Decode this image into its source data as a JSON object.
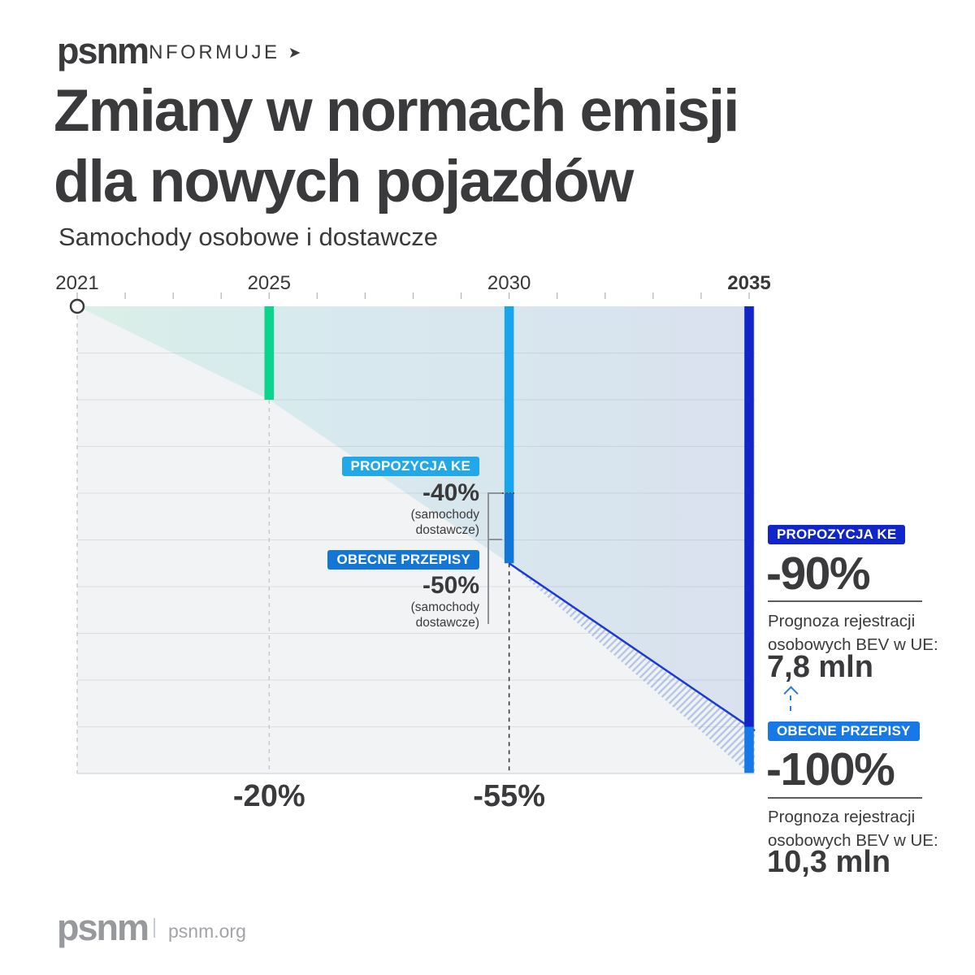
{
  "header": {
    "logo": "psnm",
    "kicker": "INFORMUJE",
    "arrow": "➤"
  },
  "title": {
    "line1": "Zmiany w normach emisji",
    "line2": "dla nowych pojazdów"
  },
  "subtitle": "Samochody osobowe i dostawcze",
  "chart_data": {
    "type": "area",
    "title": "Zmiany w normach emisji dla nowych pojazdów",
    "subtitle": "Samochody osobowe i dostawcze",
    "ylim": [
      -100,
      0
    ],
    "gridline_step_pct": 10,
    "x_axis": {
      "min_year": 2021,
      "max_year": 2035,
      "tick_every": 1,
      "year_labels": [
        {
          "text": "2021",
          "year": 2021,
          "bold": false
        },
        {
          "text": "2025",
          "year": 2025,
          "bold": false
        },
        {
          "text": "2030",
          "year": 2030,
          "bold": false
        },
        {
          "text": "2035",
          "year": 2035,
          "bold": true
        }
      ]
    },
    "series": [
      {
        "name": "PROPOZYCJA KE",
        "points": [
          {
            "year": 2021,
            "pct": 0
          },
          {
            "year": 2025,
            "pct": -20
          },
          {
            "year": 2030,
            "pct": -55
          },
          {
            "year": 2035,
            "pct": -90
          }
        ]
      },
      {
        "name": "OBECNE PRZEPISY",
        "points": [
          {
            "year": 2030,
            "pct": -55
          },
          {
            "year": 2035,
            "pct": -100
          }
        ]
      }
    ],
    "bars": [
      {
        "year": 2025,
        "segments": [
          {
            "from": 0,
            "to": -20,
            "color": "#0bd58d"
          }
        ]
      },
      {
        "year": 2030,
        "segments": [
          {
            "from": 0,
            "to": -40,
            "color": "#18a5ea"
          },
          {
            "from": -40,
            "to": -55,
            "color": "#1476d4"
          }
        ]
      },
      {
        "year": 2035,
        "segments": [
          {
            "from": 0,
            "to": -90,
            "color": "#1126c8"
          },
          {
            "from": -90,
            "to": -100,
            "color": "#1778e8"
          }
        ]
      }
    ],
    "dashed_guides": [
      {
        "year": 2021,
        "from_pct": 0,
        "dark": false
      },
      {
        "year": 2025,
        "from_pct": -20,
        "dark": false
      },
      {
        "year": 2030,
        "from_pct": -55,
        "dark": true
      }
    ],
    "x_value_labels": [
      {
        "text": "-20%",
        "year": 2025
      },
      {
        "text": "-55%",
        "year": 2030
      }
    ]
  },
  "callout_vans": {
    "proposal_badge": "PROPOZYCJA KE",
    "proposal_value": "-40%",
    "proposal_note1": "(samochody",
    "proposal_note2": "dostawcze)",
    "current_badge": "OBECNE PRZEPISY",
    "current_value": "-50%",
    "current_note1": "(samochody",
    "current_note2": "dostawcze)"
  },
  "panel_2035": {
    "proposal": {
      "badge": "PROPOZYCJA KE",
      "value": "-90%",
      "desc1": "Prognoza rejestracji",
      "desc2": "osobowych BEV w UE:",
      "forecast": "7,8 mln"
    },
    "current": {
      "badge": "OBECNE PRZEPISY",
      "value": "-100%",
      "desc1": "Prognoza rejestracji",
      "desc2": "osobowych BEV w UE:",
      "forecast": "10,3 mln"
    }
  },
  "footer": {
    "logo": "psnm",
    "site": "psnm.org"
  },
  "colors": {
    "accent_green": "#0bd58d",
    "accent_cyan": "#18a5ea",
    "accent_blue": "#1476d4",
    "accent_navy": "#1126c8",
    "accent_bright_blue": "#1778e8",
    "proposal_line_blue": "#1c39d2",
    "hatch_stripe": "#b4c6e5",
    "plot_background": "#f2f3f5",
    "text_dark": "#3a3a3c"
  }
}
